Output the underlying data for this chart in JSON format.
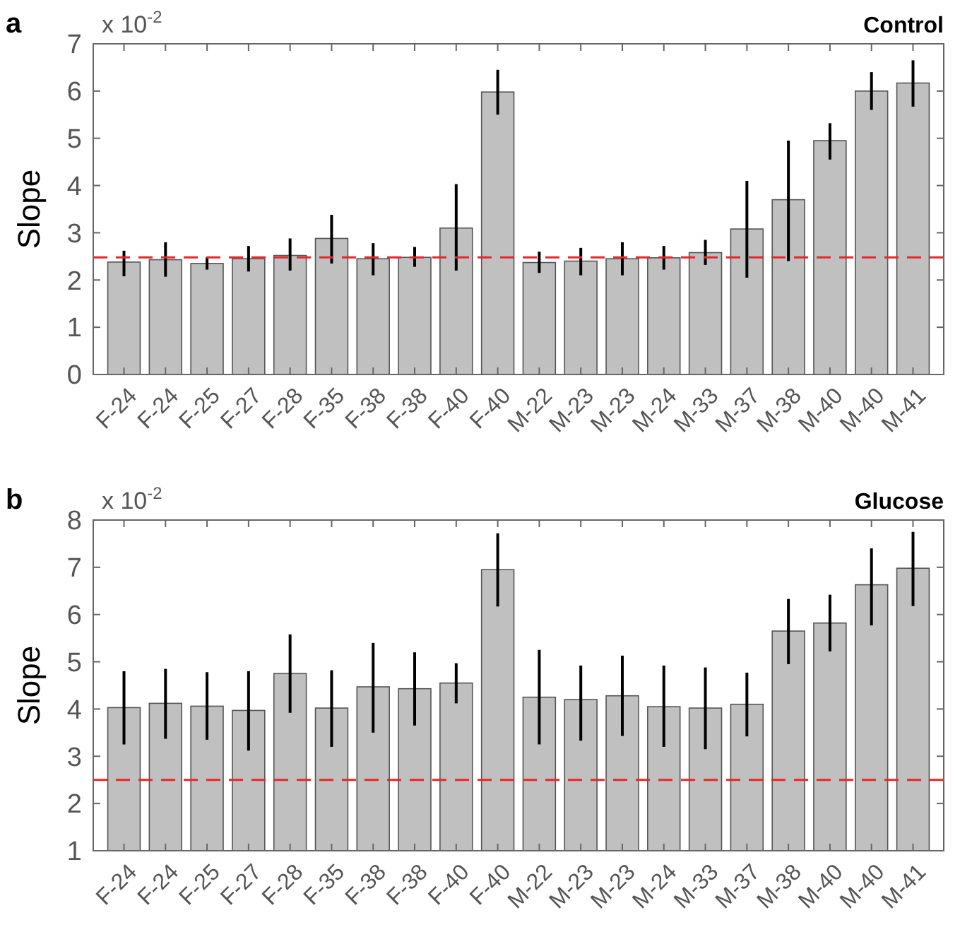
{
  "chart_data": [
    {
      "type": "bar",
      "title": "Control",
      "ylabel": "Slope",
      "annotations": [
        "a",
        "x 10$^{-2}$"
      ],
      "categories": [
        "F-24",
        "F-24",
        "F-25",
        "F-27",
        "F-28",
        "F-35",
        "F-38",
        "F-38",
        "F-40",
        "F-40",
        "M-22",
        "M-23",
        "M-23",
        "M-24",
        "M-33",
        "M-37",
        "M-38",
        "M-40",
        "M-40",
        "M-41"
      ],
      "color": "#c0c0c0",
      "values": [
        2.38,
        2.43,
        2.35,
        2.45,
        2.52,
        2.88,
        2.45,
        2.48,
        3.1,
        5.98,
        2.37,
        2.4,
        2.45,
        2.47,
        2.58,
        3.08,
        3.7,
        4.95,
        6.0,
        6.17
      ],
      "errors": [
        [
          2.08,
          2.62
        ],
        [
          2.07,
          2.8
        ],
        [
          2.22,
          2.48
        ],
        [
          2.18,
          2.72
        ],
        [
          2.2,
          2.88
        ],
        [
          2.35,
          3.38
        ],
        [
          2.1,
          2.78
        ],
        [
          2.28,
          2.7
        ],
        [
          2.2,
          4.03
        ],
        [
          5.5,
          6.45
        ],
        [
          2.15,
          2.6
        ],
        [
          2.1,
          2.68
        ],
        [
          2.1,
          2.8
        ],
        [
          2.22,
          2.72
        ],
        [
          2.32,
          2.85
        ],
        [
          2.05,
          4.1
        ],
        [
          2.4,
          4.95
        ],
        [
          4.55,
          5.32
        ],
        [
          5.6,
          6.4
        ],
        [
          5.67,
          6.65
        ]
      ],
      "ylim": [
        0,
        7
      ],
      "yticks": [
        0,
        1,
        2,
        3,
        4,
        5,
        6,
        7
      ],
      "ref_lines": [
        {
          "axis": "y",
          "value": 2.48,
          "color": "#e8262b",
          "line_style": "dashed"
        }
      ]
    },
    {
      "type": "bar",
      "title": "Glucose",
      "ylabel": "Slope",
      "annotations": [
        "b",
        "x 10$^{-2}$"
      ],
      "categories": [
        "F-24",
        "F-24",
        "F-25",
        "F-27",
        "F-28",
        "F-35",
        "F-38",
        "F-38",
        "F-40",
        "F-40",
        "M-22",
        "M-23",
        "M-23",
        "M-24",
        "M-33",
        "M-37",
        "M-38",
        "M-40",
        "M-40",
        "M-41"
      ],
      "color": "#c0c0c0",
      "values": [
        4.03,
        4.12,
        4.06,
        3.97,
        4.75,
        4.02,
        4.47,
        4.43,
        4.55,
        6.95,
        4.25,
        4.2,
        4.28,
        4.05,
        4.02,
        4.1,
        5.65,
        5.82,
        6.63,
        6.98
      ],
      "errors": [
        [
          3.25,
          4.8
        ],
        [
          3.37,
          4.85
        ],
        [
          3.35,
          4.78
        ],
        [
          3.12,
          4.8
        ],
        [
          3.92,
          5.58
        ],
        [
          3.2,
          4.82
        ],
        [
          3.5,
          5.4
        ],
        [
          3.65,
          5.2
        ],
        [
          4.12,
          4.97
        ],
        [
          6.17,
          7.72
        ],
        [
          3.25,
          5.25
        ],
        [
          3.33,
          4.92
        ],
        [
          3.43,
          5.13
        ],
        [
          3.2,
          4.92
        ],
        [
          3.15,
          4.88
        ],
        [
          3.42,
          4.77
        ],
        [
          4.95,
          6.33
        ],
        [
          5.22,
          6.42
        ],
        [
          5.77,
          7.4
        ],
        [
          6.18,
          7.75
        ]
      ],
      "ylim": [
        1,
        8
      ],
      "yticks": [
        1,
        2,
        3,
        4,
        5,
        6,
        7,
        8
      ],
      "ref_lines": [
        {
          "axis": "y",
          "value": 2.5,
          "color": "#e8262b",
          "line_style": "dashed"
        }
      ]
    }
  ]
}
